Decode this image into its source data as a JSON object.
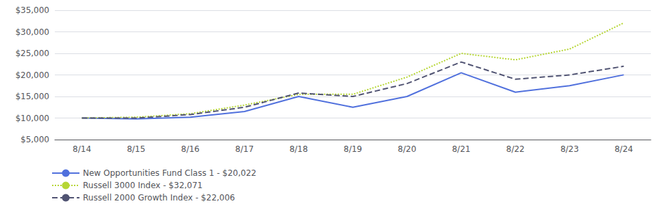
{
  "chart_data": {
    "type": "line",
    "categories": [
      "8/14",
      "8/15",
      "8/16",
      "8/17",
      "8/18",
      "8/19",
      "8/20",
      "8/21",
      "8/22",
      "8/23",
      "8/24"
    ],
    "series": [
      {
        "name": "New Opportunities Fund Class 1 - $20,022",
        "line_style": "solid",
        "values": [
          10000,
          9800,
          10200,
          11500,
          15000,
          12500,
          15000,
          20500,
          16000,
          17500,
          20022
        ]
      },
      {
        "name": "Russell 3000 Index - $32,071",
        "line_style": "dotted",
        "values": [
          10000,
          10200,
          11000,
          13000,
          15500,
          15500,
          19500,
          25000,
          23500,
          26000,
          32071
        ]
      },
      {
        "name": "Russell 2000 Growth Index - $22,006",
        "line_style": "dashed",
        "values": [
          10000,
          10000,
          10800,
          12500,
          15800,
          15000,
          18000,
          23000,
          19000,
          20000,
          22006
        ]
      }
    ],
    "ylim": [
      5000,
      35000
    ],
    "yticks": [
      {
        "value": 5000,
        "label": "$5,000"
      },
      {
        "value": 10000,
        "label": "$10,000"
      },
      {
        "value": 15000,
        "label": "$15,000"
      },
      {
        "value": 20000,
        "label": "$20,000"
      },
      {
        "value": 25000,
        "label": "$25,000"
      },
      {
        "value": 30000,
        "label": "$30,000"
      },
      {
        "value": 35000,
        "label": "$35,000"
      }
    ],
    "grid": true,
    "legend": "bottom left"
  }
}
